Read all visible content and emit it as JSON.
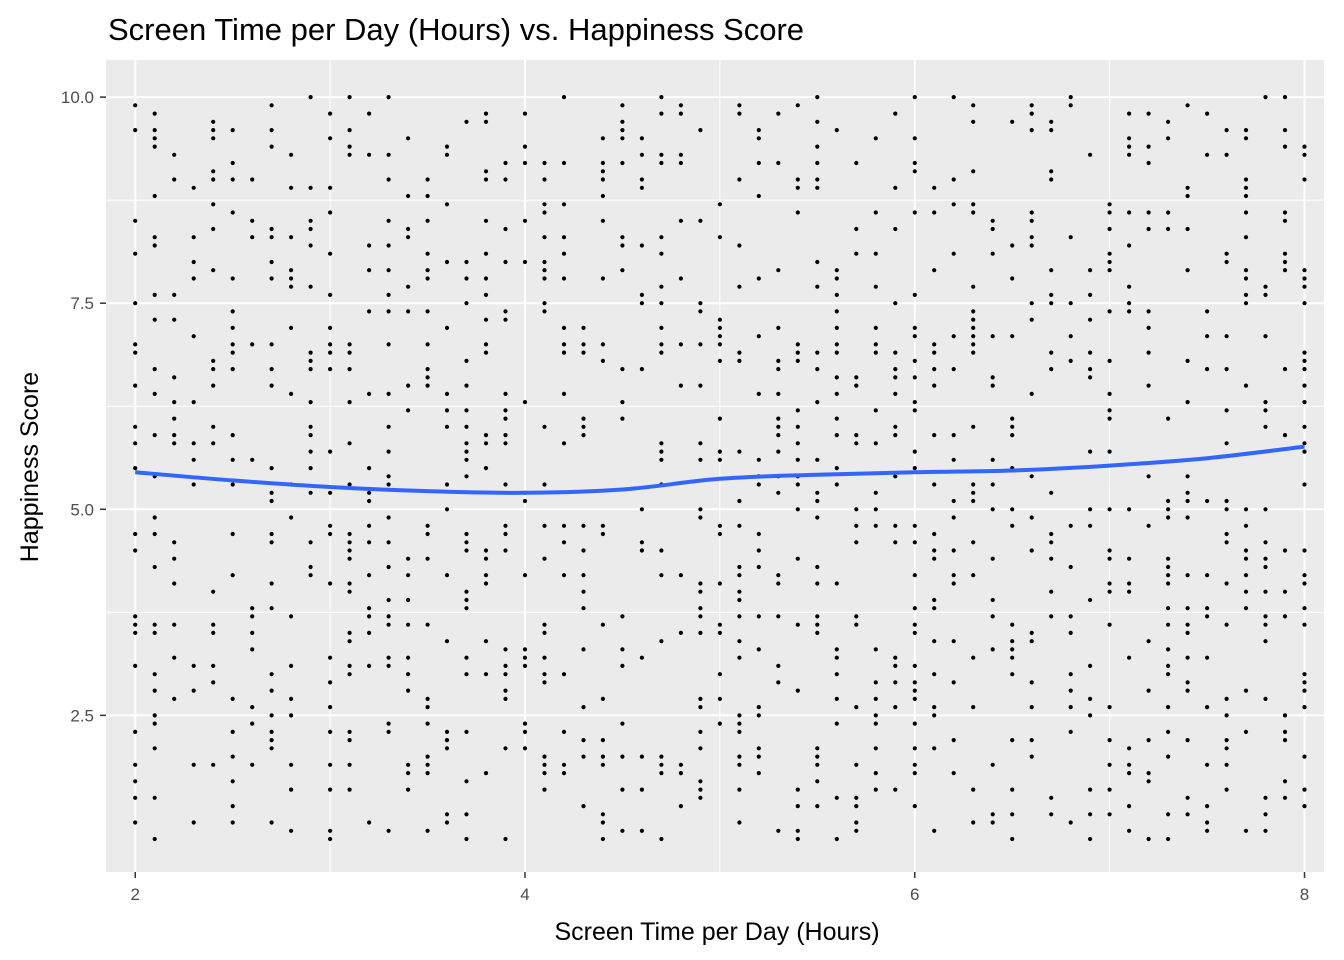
{
  "chart_data": {
    "type": "scatter",
    "title": "Screen Time per Day (Hours) vs. Happiness Score",
    "xlabel": "Screen Time per Day (Hours)",
    "ylabel": "Happiness Score",
    "xlim": [
      1.85,
      8.1
    ],
    "ylim": [
      0.6,
      10.45
    ],
    "x_ticks": [
      2,
      4,
      6,
      8
    ],
    "x_tick_labels": [
      "2",
      "4",
      "6",
      "8"
    ],
    "y_ticks": [
      2.5,
      5.0,
      7.5,
      10.0
    ],
    "y_tick_labels": [
      "2.5",
      "5.0",
      "7.5",
      "10.0"
    ],
    "grid": true,
    "background": "#ebebeb",
    "point_color": "#000000",
    "smooth_color": "#3366ff",
    "x_domain": [
      2.0,
      8.0
    ],
    "x_step": 0.1,
    "y_domain": [
      1.0,
      10.0
    ],
    "y_step": 0.1,
    "points_note_count": 1200,
    "smooth_line": {
      "x": [
        2.0,
        2.5,
        3.0,
        3.5,
        4.0,
        4.5,
        5.0,
        5.5,
        6.0,
        6.5,
        7.0,
        7.5,
        8.0
      ],
      "y": [
        5.45,
        5.35,
        5.27,
        5.22,
        5.2,
        5.24,
        5.37,
        5.42,
        5.45,
        5.47,
        5.53,
        5.62,
        5.76
      ]
    }
  }
}
